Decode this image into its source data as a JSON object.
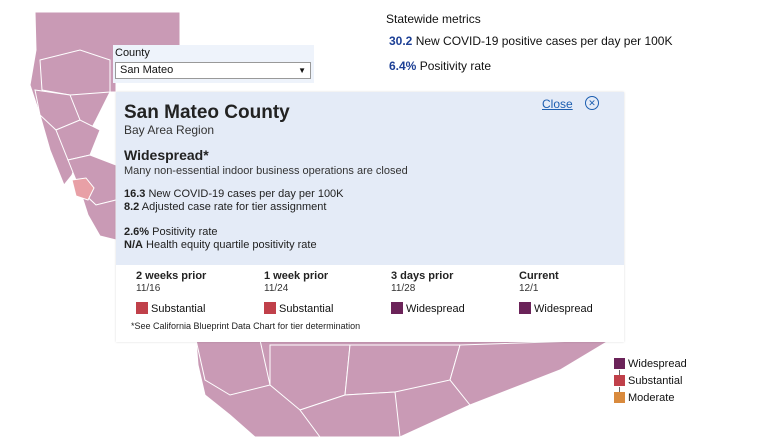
{
  "statewide": {
    "title": "Statewide metrics",
    "cases_value": "30.2",
    "cases_label": " New COVID-19 positive cases per day per 100K",
    "positivity_value": "6.4%",
    "positivity_label": " Positivity rate"
  },
  "county_select": {
    "label": "County",
    "value": "San Mateo"
  },
  "popup": {
    "close_label": "Close",
    "county": "San Mateo County",
    "region": "Bay Area Region",
    "tier": "Widespread*",
    "tier_desc": "Many non-essential indoor business operations are closed",
    "cases_value": "16.3",
    "cases_label": " New COVID-19 cases per day per 100K",
    "adj_value": "8.2",
    "adj_label": " Adjusted case rate for tier assignment",
    "pos_value": "2.6%",
    "pos_label": " Positivity rate",
    "equity_value": "N/A",
    "equity_label": " Health equity quartile positivity rate",
    "history": [
      {
        "heading": "2 weeks prior",
        "date": "11/16",
        "tier": "Substantial",
        "color": "#c0404a"
      },
      {
        "heading": "1 week prior",
        "date": "11/24",
        "tier": "Substantial",
        "color": "#c0404a"
      },
      {
        "heading": "3 days prior",
        "date": "11/28",
        "tier": "Widespread",
        "color": "#6b2359"
      },
      {
        "heading": "Current",
        "date": "12/1",
        "tier": "Widespread",
        "color": "#6b2359"
      }
    ],
    "footnote": "*See California Blueprint Data Chart for tier determination"
  },
  "legend": [
    {
      "label": "Widespread",
      "color": "#6b2359"
    },
    {
      "label": "Substantial",
      "color": "#c0404a"
    },
    {
      "label": "Moderate",
      "color": "#d98a3d"
    }
  ],
  "colors": {
    "map_fill": "#c99ab5",
    "highlight": "#e8a0a6",
    "accent": "#1c3f95"
  }
}
